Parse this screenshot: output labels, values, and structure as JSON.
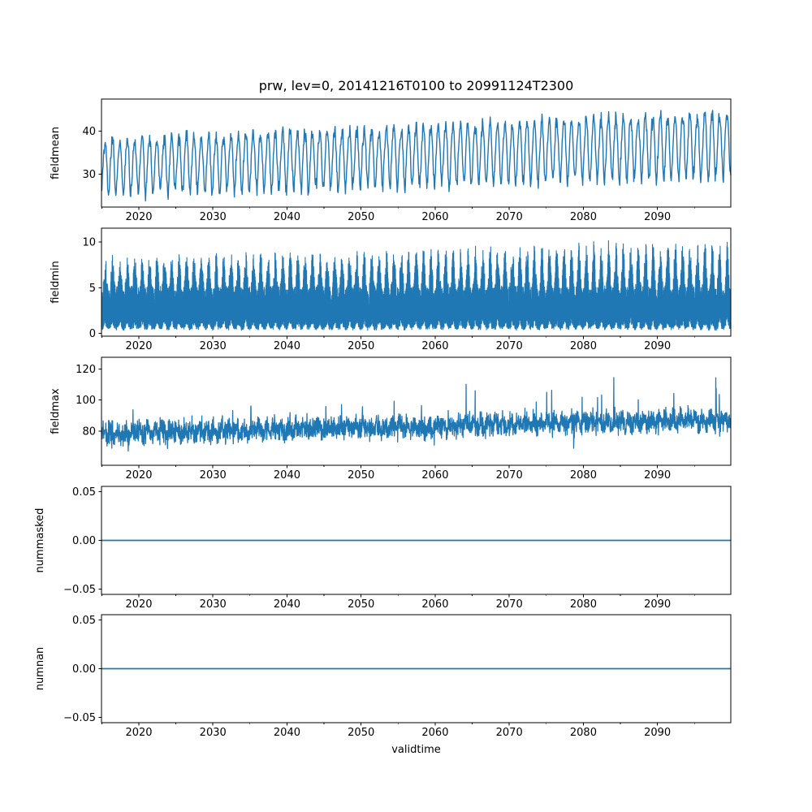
{
  "chart_data": {
    "type": "line",
    "title": "prw, lev=0, 20141216T0100 to 20991124T2300",
    "xlabel": "validtime",
    "variable": "prw",
    "level": "lev=0",
    "time_range_start": "20141216T0100",
    "time_range_end": "20991124T2300",
    "line_color": "#1f77b4",
    "grid": false,
    "legend": "none",
    "x_axis": {
      "start_year": 2014.96,
      "end_year": 2099.9,
      "major_ticks": [
        2020,
        2030,
        2040,
        2050,
        2060,
        2070,
        2080,
        2090
      ],
      "minor_ticks": [
        2015,
        2025,
        2035,
        2045,
        2055,
        2065,
        2075,
        2085,
        2095
      ]
    },
    "panels": [
      {
        "name": "fieldmean",
        "ylabel": "fieldmean",
        "ylim": [
          22.4,
          47.4
        ],
        "yticks": [
          30,
          40
        ],
        "tick_decimals": 0,
        "line_width": 1.4,
        "series": {
          "kind": "seasonal",
          "points_per_year": 18,
          "years": 85,
          "base_start": 32.0,
          "base_slope": 5.3,
          "amp_base": 6.3,
          "amp_slope": 1.2,
          "noise": 1.0,
          "seed": 42
        },
        "observed": {
          "description": "annual oscillation, slowly rising trend",
          "start_typical_min": 24.5,
          "start_typical_max": 40.5,
          "end_typical_min": 28.5,
          "end_typical_max": 46.5
        }
      },
      {
        "name": "fieldmin",
        "ylabel": "fieldmin",
        "ylim": [
          -0.3,
          11.5
        ],
        "yticks": [
          0,
          5,
          10
        ],
        "tick_decimals": 0,
        "line_width": 1.1,
        "series": {
          "kind": "band",
          "points_per_year": 44,
          "years": 85,
          "top_base": 4.9,
          "peak_start": 3.4,
          "peak_slope": 2.0,
          "bottom_base": 0.3,
          "seed": 7
        },
        "observed": {
          "description": "dense band from ~0.3 up to annual peaks",
          "start_typical_min": 0.2,
          "start_typical_max": 9.2,
          "end_typical_min": 0.2,
          "end_typical_max": 10.8
        }
      },
      {
        "name": "fieldmax",
        "ylabel": "fieldmax",
        "ylim": [
          58.0,
          127.5
        ],
        "yticks": [
          80,
          100,
          120
        ],
        "tick_decimals": 0,
        "line_width": 1.3,
        "series": {
          "kind": "noisy",
          "points_per_year": 36,
          "years": 85,
          "center_start": 78.5,
          "center_slope": 9.0,
          "seasonal_amp": 2.0,
          "spread": 8.5,
          "spike_prob": 0.015,
          "seed": 11
        },
        "observed": {
          "description": "noisy band, rising trend with upward spikes",
          "start_typical_min": 63,
          "start_typical_max": 104,
          "end_typical_min": 68,
          "end_typical_max": 125
        }
      },
      {
        "name": "nummasked",
        "ylabel": "nummasked",
        "ylim": [
          -0.0555,
          0.0555
        ],
        "yticks": [
          -0.05,
          0,
          0.05
        ],
        "tick_decimals": 2,
        "line_width": 1.8,
        "series": {
          "kind": "constant",
          "value": 0
        },
        "observed": {
          "description": "constant zero line",
          "constant_value": 0
        }
      },
      {
        "name": "numnan",
        "ylabel": "numnan",
        "ylim": [
          -0.0555,
          0.0555
        ],
        "yticks": [
          -0.05,
          0,
          0.05
        ],
        "tick_decimals": 2,
        "line_width": 1.8,
        "series": {
          "kind": "constant",
          "value": 0
        },
        "observed": {
          "description": "constant zero line",
          "constant_value": 0
        }
      }
    ]
  }
}
